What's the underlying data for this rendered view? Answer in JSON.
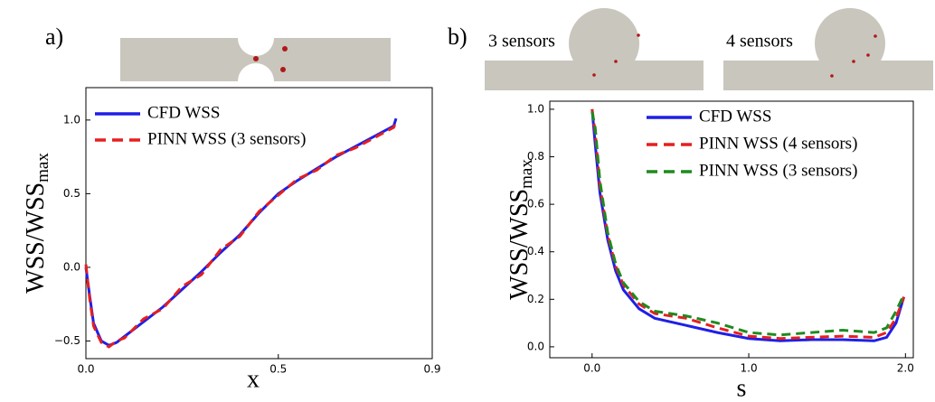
{
  "chart_data": [
    {
      "type": "line",
      "panel_label": "a)",
      "xlabel": "x",
      "ylabel": "WSS/WSS",
      "ylabel_subscript": "max",
      "x": [
        0,
        0.01,
        0.02,
        0.04,
        0.06,
        0.08,
        0.1,
        0.15,
        0.2,
        0.25,
        0.3,
        0.35,
        0.4,
        0.45,
        0.5,
        0.55,
        0.6,
        0.65,
        0.7,
        0.75,
        0.8,
        0.806
      ],
      "series": [
        {
          "name": "CFD WSS",
          "color": "#1f1fe6",
          "dashed": false,
          "values": [
            0,
            -0.2,
            -0.38,
            -0.5,
            -0.53,
            -0.51,
            -0.47,
            -0.37,
            -0.27,
            -0.15,
            -0.03,
            0.1,
            0.22,
            0.37,
            0.5,
            0.59,
            0.67,
            0.75,
            0.82,
            0.89,
            0.96,
            1.01
          ]
        },
        {
          "name": "PINN WSS (3 sensors)",
          "color": "#e61f1f",
          "dashed": true,
          "values": [
            0.02,
            -0.22,
            -0.4,
            -0.51,
            -0.54,
            -0.5,
            -0.48,
            -0.35,
            -0.28,
            -0.13,
            -0.05,
            0.12,
            0.21,
            0.38,
            0.49,
            0.6,
            0.66,
            0.76,
            0.81,
            0.88,
            0.95,
            0.99
          ]
        }
      ],
      "xlim": [
        0,
        0.9
      ],
      "xticks": [
        {
          "value": 0,
          "label": "0.0"
        },
        0.5,
        0.9
      ],
      "ylim": [
        -0.62,
        1.22
      ],
      "yticks": [
        {
          "value": -0.5,
          "label": "−0.5"
        },
        {
          "value": 0,
          "label": "0.0"
        },
        0.5,
        {
          "value": 1,
          "label": "1.0"
        }
      ]
    },
    {
      "type": "line",
      "panel_label": "b)",
      "xlabel": "s",
      "ylabel": "WSS/WSS",
      "ylabel_subscript": "max",
      "inset_labels": [
        "3 sensors",
        "4 sensors"
      ],
      "x": [
        0,
        0.02,
        0.05,
        0.1,
        0.15,
        0.2,
        0.3,
        0.4,
        0.6,
        0.8,
        1.0,
        1.2,
        1.4,
        1.6,
        1.8,
        1.88,
        1.94,
        1.99
      ],
      "series": [
        {
          "name": "CFD WSS",
          "color": "#1f1fe6",
          "dashed": false,
          "values": [
            1.0,
            0.85,
            0.65,
            0.45,
            0.32,
            0.24,
            0.16,
            0.12,
            0.09,
            0.06,
            0.035,
            0.025,
            0.03,
            0.03,
            0.025,
            0.04,
            0.1,
            0.21
          ]
        },
        {
          "name": "PINN WSS (4 sensors)",
          "color": "#e61f1f",
          "dashed": true,
          "values": [
            1.0,
            0.9,
            0.68,
            0.47,
            0.34,
            0.26,
            0.18,
            0.14,
            0.12,
            0.08,
            0.045,
            0.035,
            0.04,
            0.045,
            0.04,
            0.06,
            0.12,
            0.21
          ]
        },
        {
          "name": "PINN WSS (3 sensors)",
          "color": "#1f8a1f",
          "dashed": true,
          "values": [
            0.99,
            0.92,
            0.7,
            0.48,
            0.35,
            0.27,
            0.19,
            0.15,
            0.13,
            0.1,
            0.06,
            0.05,
            0.06,
            0.07,
            0.06,
            0.08,
            0.15,
            0.22
          ]
        }
      ],
      "xlim": [
        -0.27,
        2.05
      ],
      "xticks": [
        {
          "value": 0,
          "label": "0.0"
        },
        {
          "value": 1,
          "label": "1.0"
        },
        {
          "value": 2,
          "label": "2.0"
        }
      ],
      "ylim": [
        -0.046,
        1.034
      ],
      "yticks": [
        {
          "value": 0,
          "label": "0.0"
        },
        0.2,
        0.4,
        0.6,
        0.8,
        {
          "value": 1,
          "label": "1.0"
        }
      ]
    }
  ]
}
